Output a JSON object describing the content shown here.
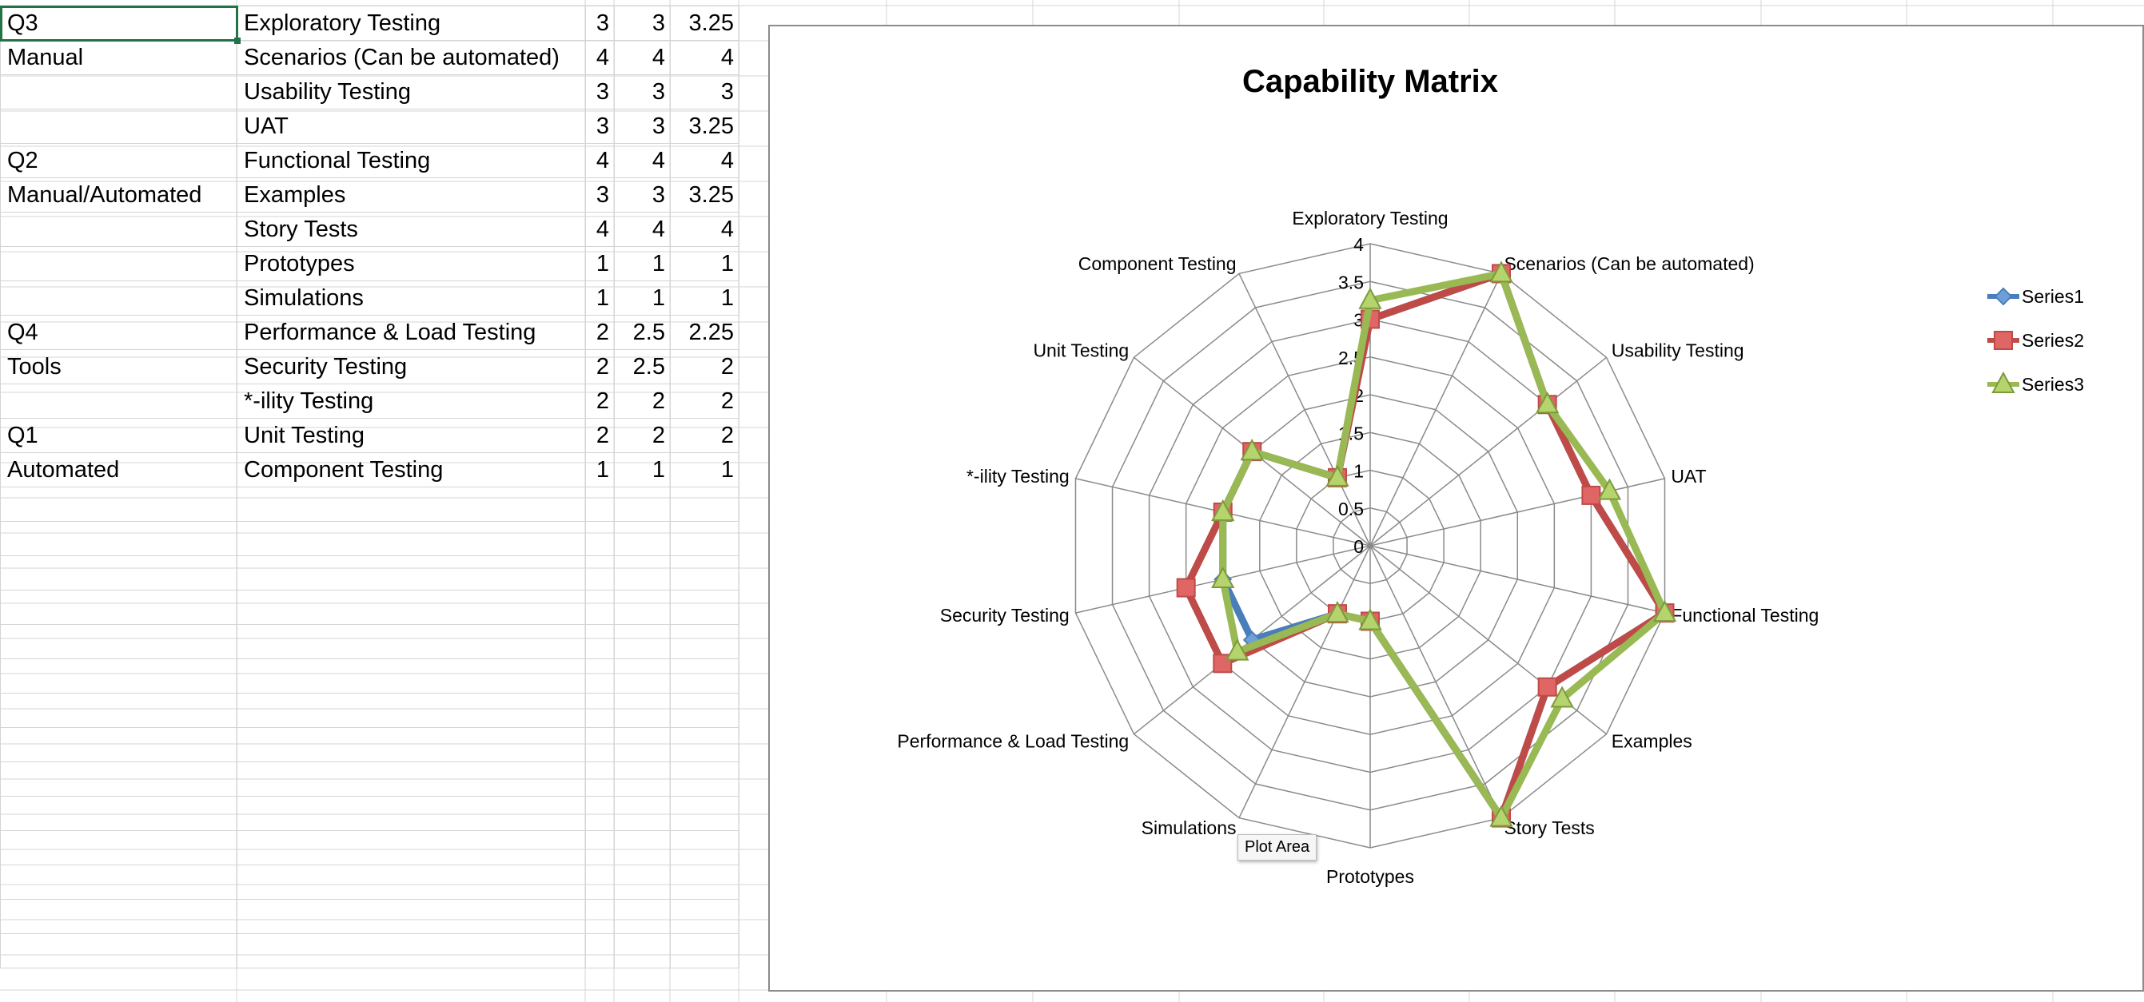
{
  "sheet": {
    "rows": [
      {
        "group": "Q3",
        "name": "Exploratory Testing",
        "v1": "3",
        "v2": "3",
        "v3": "3.25"
      },
      {
        "group": "Manual",
        "name": "Scenarios (Can be automated)",
        "v1": "4",
        "v2": "4",
        "v3": "4"
      },
      {
        "group": "",
        "name": "Usability Testing",
        "v1": "3",
        "v2": "3",
        "v3": "3"
      },
      {
        "group": "",
        "name": "UAT",
        "v1": "3",
        "v2": "3",
        "v3": "3.25"
      },
      {
        "group": "Q2",
        "name": "Functional Testing",
        "v1": "4",
        "v2": "4",
        "v3": "4"
      },
      {
        "group": "Manual/Automated",
        "name": "Examples",
        "v1": "3",
        "v2": "3",
        "v3": "3.25"
      },
      {
        "group": "",
        "name": "Story Tests",
        "v1": "4",
        "v2": "4",
        "v3": "4"
      },
      {
        "group": "",
        "name": "Prototypes",
        "v1": "1",
        "v2": "1",
        "v3": "1"
      },
      {
        "group": "",
        "name": "Simulations",
        "v1": "1",
        "v2": "1",
        "v3": "1"
      },
      {
        "group": "Q4",
        "name": "Performance & Load Testing",
        "v1": "2",
        "v2": "2.5",
        "v3": "2.25"
      },
      {
        "group": "Tools",
        "name": "Security Testing",
        "v1": "2",
        "v2": "2.5",
        "v3": "2"
      },
      {
        "group": "",
        "name": "*-ility Testing",
        "v1": "2",
        "v2": "2",
        "v3": "2"
      },
      {
        "group": "Q1",
        "name": "Unit Testing",
        "v1": "2",
        "v2": "2",
        "v3": "2"
      },
      {
        "group": "Automated",
        "name": "Component Testing",
        "v1": "1",
        "v2": "1",
        "v3": "1"
      }
    ]
  },
  "tooltip": "Plot Area",
  "chart_data": {
    "type": "radar",
    "title": "Capability Matrix",
    "categories": [
      "Exploratory Testing",
      "Scenarios (Can be automated)",
      "Usability Testing",
      "UAT",
      "Functional Testing",
      "Examples",
      "Story Tests",
      "Prototypes",
      "Simulations",
      "Performance & Load Testing",
      "Security Testing",
      "*-ility Testing",
      "Unit Testing",
      "Component Testing"
    ],
    "series": [
      {
        "name": "Series1",
        "color": "#4a7ebb",
        "marker": "diamond",
        "values": [
          3,
          4,
          3,
          3,
          4,
          3,
          4,
          1,
          1,
          2,
          2,
          2,
          2,
          1
        ]
      },
      {
        "name": "Series2",
        "color": "#be4b48",
        "marker": "square",
        "values": [
          3,
          4,
          3,
          3,
          4,
          3,
          4,
          1,
          1,
          2.5,
          2.5,
          2,
          2,
          1
        ]
      },
      {
        "name": "Series3",
        "color": "#98b954",
        "marker": "triangle",
        "values": [
          3.25,
          4,
          3,
          3.25,
          4,
          3.25,
          4,
          1,
          1,
          2.25,
          2,
          2,
          2,
          1
        ]
      }
    ],
    "rlim": [
      0,
      4
    ],
    "ticks": [
      "0",
      "0.5",
      "1",
      "1.5",
      "2",
      "2.5",
      "3",
      "3.5",
      "4"
    ],
    "grid": true,
    "legend": "right"
  }
}
